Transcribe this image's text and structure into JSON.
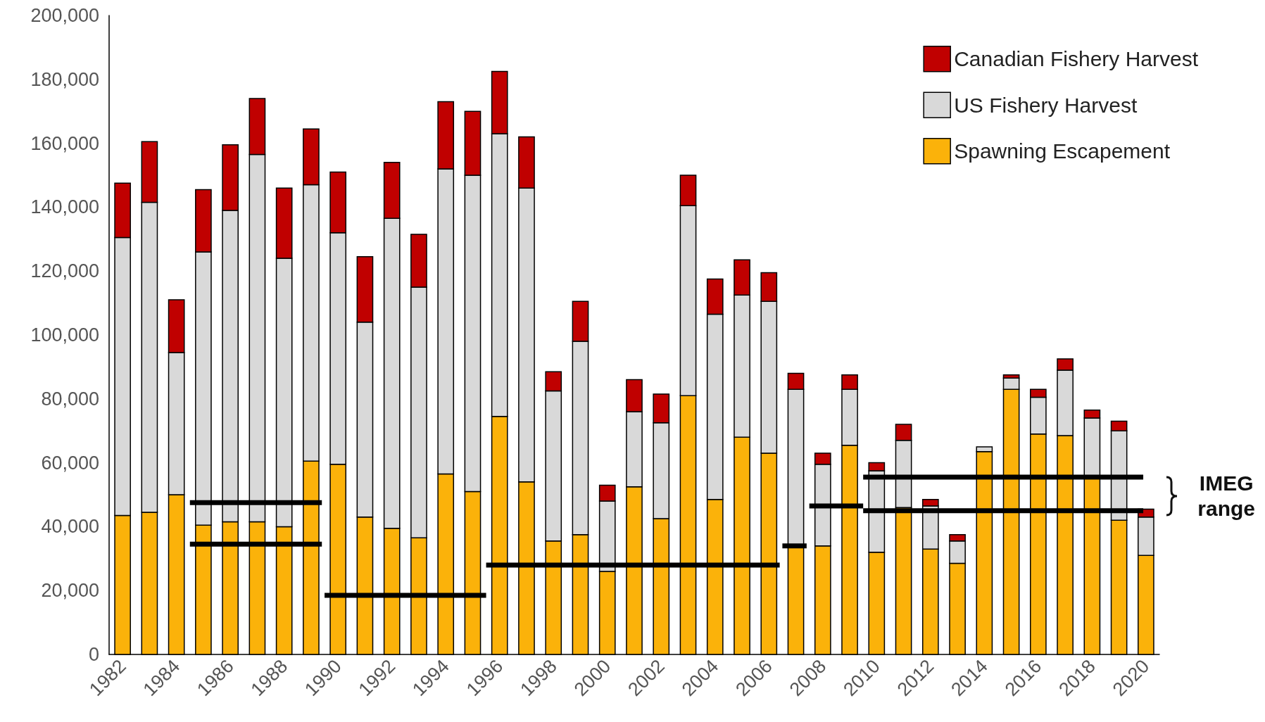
{
  "chart_data": {
    "type": "bar",
    "stacked": true,
    "x": [
      1982,
      1983,
      1984,
      1985,
      1986,
      1987,
      1988,
      1989,
      1990,
      1991,
      1992,
      1993,
      1994,
      1995,
      1996,
      1997,
      1998,
      1999,
      2000,
      2001,
      2002,
      2003,
      2004,
      2005,
      2006,
      2007,
      2008,
      2009,
      2010,
      2011,
      2012,
      2013,
      2014,
      2015,
      2016,
      2017,
      2018,
      2019,
      2020
    ],
    "series": [
      {
        "name": "Spawning Escapement",
        "color": "#fbb20a",
        "values": [
          43500,
          44500,
          50000,
          40500,
          41500,
          41500,
          40000,
          60500,
          59500,
          43000,
          39500,
          36500,
          56500,
          51000,
          74500,
          54000,
          35500,
          37500,
          26000,
          52500,
          42500,
          81000,
          48500,
          68000,
          63000,
          33500,
          34000,
          65500,
          32000,
          46000,
          33000,
          28500,
          63500,
          83000,
          69000,
          68500,
          55000,
          42000,
          31000
        ]
      },
      {
        "name": "US Fishery Harvest",
        "color": "#d9d9d9",
        "values": [
          87000,
          97000,
          44500,
          85500,
          97500,
          115000,
          84000,
          86500,
          72500,
          61000,
          97000,
          78500,
          95500,
          99000,
          88500,
          92000,
          47000,
          60500,
          22000,
          23500,
          30000,
          59500,
          58000,
          44500,
          47500,
          49500,
          25500,
          17500,
          25500,
          21000,
          13500,
          7000,
          1500,
          3500,
          11500,
          20500,
          19000,
          28000,
          12000
        ]
      },
      {
        "name": "Canadian Fishery Harvest",
        "color": "#c00000",
        "values": [
          17000,
          19000,
          16500,
          19500,
          20500,
          17500,
          22000,
          17500,
          19000,
          20500,
          17500,
          16500,
          21000,
          20000,
          19500,
          16000,
          6000,
          12500,
          5000,
          10000,
          9000,
          9500,
          11000,
          11000,
          9000,
          5000,
          3500,
          4500,
          2500,
          5000,
          2000,
          2000,
          null,
          1000,
          2500,
          3500,
          2500,
          3000,
          2500
        ]
      },
      {
        "type": "line",
        "color": "#000000",
        "x": [
          1984.5,
          1989.4
        ],
        "values": [
          47500,
          47500
        ]
      },
      {
        "type": "line",
        "color": "#000000",
        "x": [
          1984.5,
          1989.4
        ],
        "values": [
          34500,
          34500
        ]
      },
      {
        "type": "line",
        "color": "#000000",
        "x": [
          1989.5,
          1995.5
        ],
        "values": [
          18500,
          18500
        ]
      },
      {
        "type": "line",
        "color": "#000000",
        "x": [
          1995.5,
          2006.4
        ],
        "values": [
          28000,
          28000
        ]
      },
      {
        "type": "line",
        "color": "#000000",
        "x": [
          2006.5,
          2007.4
        ],
        "values": [
          34000,
          34000
        ]
      },
      {
        "type": "line",
        "color": "#000000",
        "x": [
          2007.5,
          2009.5
        ],
        "values": [
          46500,
          46500
        ]
      },
      {
        "type": "line",
        "color": "#000000",
        "x": [
          2009.5,
          2019.9
        ],
        "values": [
          55500,
          55500
        ]
      },
      {
        "type": "line",
        "color": "#000000",
        "x": [
          2009.5,
          2019.9
        ],
        "values": [
          45000,
          45000
        ]
      }
    ],
    "xlim": [
      1981.5,
      2020.5
    ],
    "xticks": [
      1982,
      1984,
      1986,
      1988,
      1990,
      1992,
      1994,
      1996,
      1998,
      2000,
      2002,
      2004,
      2006,
      2008,
      2010,
      2012,
      2014,
      2016,
      2018,
      2020
    ],
    "ylim": [
      0,
      200000
    ],
    "yticks": [
      0,
      {
        "value": 20000,
        "label": "20,000"
      },
      {
        "value": 40000,
        "label": "40,000"
      },
      {
        "value": 60000,
        "label": "60,000"
      },
      {
        "value": 80000,
        "label": "80,000"
      },
      {
        "value": 100000,
        "label": "100,000"
      },
      {
        "value": 120000,
        "label": "120,000"
      },
      {
        "value": 140000,
        "label": "140,000"
      },
      {
        "value": 160000,
        "label": "160,000"
      },
      {
        "value": 180000,
        "label": "180,000"
      },
      {
        "value": 200000,
        "label": "200,000"
      }
    ],
    "grid": false,
    "legend": "top right",
    "marker": "none",
    "line_style": "solid",
    "annotations": [
      "IMEG range"
    ]
  }
}
